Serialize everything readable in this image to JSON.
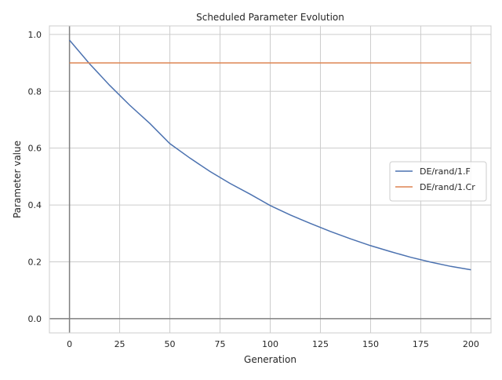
{
  "chart_data": {
    "type": "line",
    "title": "Scheduled Parameter Evolution",
    "xlabel": "Generation",
    "ylabel": "Parameter value",
    "xlim": [
      -10,
      210
    ],
    "ylim": [
      -0.05,
      1.03
    ],
    "xticks": [
      0,
      25,
      50,
      75,
      100,
      125,
      150,
      175,
      200
    ],
    "xtick_labels": [
      "0",
      "25",
      "50",
      "75",
      "100",
      "125",
      "150",
      "175",
      "200"
    ],
    "yticks": [
      0.0,
      0.2,
      0.4,
      0.6,
      0.8,
      1.0
    ],
    "ytick_labels": [
      "0.0",
      "0.2",
      "0.4",
      "0.6",
      "0.8",
      "1.0"
    ],
    "grid": true,
    "legend_position": "center-right",
    "reference_lines": {
      "x": 0,
      "y": 0,
      "color": "#808080"
    },
    "series": [
      {
        "name": "DE/rand/1.F",
        "color": "#4c72b0",
        "x": [
          0,
          10,
          20,
          30,
          40,
          50,
          60,
          70,
          80,
          90,
          100,
          110,
          120,
          130,
          140,
          150,
          160,
          170,
          180,
          190,
          200
        ],
        "values": [
          0.98,
          0.897,
          0.821,
          0.751,
          0.687,
          0.616,
          0.565,
          0.518,
          0.476,
          0.438,
          0.398,
          0.365,
          0.335,
          0.307,
          0.281,
          0.257,
          0.236,
          0.216,
          0.199,
          0.184,
          0.172
        ]
      },
      {
        "name": "DE/rand/1.Cr",
        "color": "#dd8452",
        "x": [
          0,
          200
        ],
        "values": [
          0.9,
          0.9
        ]
      }
    ]
  }
}
